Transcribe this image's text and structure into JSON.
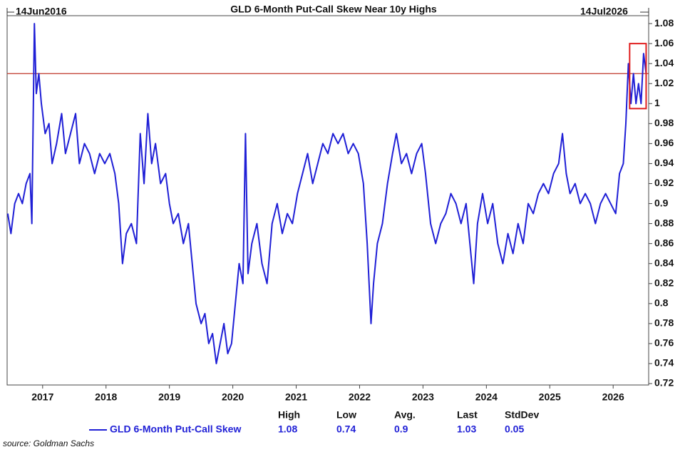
{
  "chart_data": {
    "type": "line",
    "title": "GLD 6-Month Put-Call Skew Near 10y Highs",
    "start_label": "14Jun2016",
    "end_label": "14Jul2026",
    "x": [
      2016.45,
      2016.5,
      2016.56,
      2016.62,
      2016.68,
      2016.74,
      2016.8,
      2016.83,
      2016.87,
      2016.9,
      2016.94,
      2016.98,
      2017.04,
      2017.1,
      2017.15,
      2017.22,
      2017.3,
      2017.36,
      2017.44,
      2017.52,
      2017.58,
      2017.66,
      2017.74,
      2017.82,
      2017.9,
      2017.98,
      2018.06,
      2018.14,
      2018.2,
      2018.26,
      2018.32,
      2018.4,
      2018.48,
      2018.54,
      2018.6,
      2018.66,
      2018.72,
      2018.78,
      2018.86,
      2018.94,
      2019.0,
      2019.06,
      2019.14,
      2019.22,
      2019.3,
      2019.36,
      2019.42,
      2019.5,
      2019.56,
      2019.62,
      2019.68,
      2019.74,
      2019.8,
      2019.86,
      2019.92,
      2019.98,
      2020.04,
      2020.1,
      2020.16,
      2020.2,
      2020.24,
      2020.3,
      2020.38,
      2020.46,
      2020.54,
      2020.62,
      2020.7,
      2020.78,
      2020.86,
      2020.94,
      2021.02,
      2021.1,
      2021.18,
      2021.26,
      2021.34,
      2021.42,
      2021.5,
      2021.58,
      2021.66,
      2021.74,
      2021.82,
      2021.9,
      2021.98,
      2022.06,
      2022.12,
      2022.18,
      2022.22,
      2022.28,
      2022.36,
      2022.44,
      2022.52,
      2022.58,
      2022.66,
      2022.74,
      2022.82,
      2022.9,
      2022.98,
      2023.04,
      2023.12,
      2023.2,
      2023.28,
      2023.36,
      2023.44,
      2023.52,
      2023.6,
      2023.68,
      2023.74,
      2023.8,
      2023.86,
      2023.94,
      2024.02,
      2024.1,
      2024.18,
      2024.26,
      2024.34,
      2024.42,
      2024.5,
      2024.58,
      2024.66,
      2024.74,
      2024.82,
      2024.9,
      2024.98,
      2025.06,
      2025.14,
      2025.2,
      2025.26,
      2025.32,
      2025.4,
      2025.48,
      2025.56,
      2025.64,
      2025.72,
      2025.8,
      2025.88,
      2025.96,
      2026.04,
      2026.1,
      2026.16,
      2026.2,
      2026.24,
      2026.28,
      2026.32,
      2026.36,
      2026.4,
      2026.44,
      2026.48,
      2026.52
    ],
    "series": [
      {
        "name": "GLD 6-Month Put-Call Skew",
        "color": "#1f1fd6",
        "values": [
          0.89,
          0.87,
          0.9,
          0.91,
          0.9,
          0.92,
          0.93,
          0.88,
          1.08,
          1.01,
          1.03,
          1.0,
          0.97,
          0.98,
          0.94,
          0.96,
          0.99,
          0.95,
          0.97,
          0.99,
          0.94,
          0.96,
          0.95,
          0.93,
          0.95,
          0.94,
          0.95,
          0.93,
          0.9,
          0.84,
          0.87,
          0.88,
          0.86,
          0.97,
          0.92,
          0.99,
          0.94,
          0.96,
          0.92,
          0.93,
          0.9,
          0.88,
          0.89,
          0.86,
          0.88,
          0.84,
          0.8,
          0.78,
          0.79,
          0.76,
          0.77,
          0.74,
          0.76,
          0.78,
          0.75,
          0.76,
          0.8,
          0.84,
          0.82,
          0.97,
          0.83,
          0.86,
          0.88,
          0.84,
          0.82,
          0.88,
          0.9,
          0.87,
          0.89,
          0.88,
          0.91,
          0.93,
          0.95,
          0.92,
          0.94,
          0.96,
          0.95,
          0.97,
          0.96,
          0.97,
          0.95,
          0.96,
          0.95,
          0.92,
          0.86,
          0.78,
          0.82,
          0.86,
          0.88,
          0.92,
          0.95,
          0.97,
          0.94,
          0.95,
          0.93,
          0.95,
          0.96,
          0.93,
          0.88,
          0.86,
          0.88,
          0.89,
          0.91,
          0.9,
          0.88,
          0.9,
          0.86,
          0.82,
          0.88,
          0.91,
          0.88,
          0.9,
          0.86,
          0.84,
          0.87,
          0.85,
          0.88,
          0.86,
          0.9,
          0.89,
          0.91,
          0.92,
          0.91,
          0.93,
          0.94,
          0.97,
          0.93,
          0.91,
          0.92,
          0.9,
          0.91,
          0.9,
          0.88,
          0.9,
          0.91,
          0.9,
          0.89,
          0.93,
          0.94,
          0.98,
          1.04,
          1.0,
          1.03,
          1.0,
          1.02,
          1.0,
          1.05,
          1.03
        ]
      }
    ],
    "xlim": [
      2016.44,
      2026.56
    ],
    "xticks": [
      2017,
      2018,
      2019,
      2020,
      2021,
      2022,
      2023,
      2024,
      2025,
      2026
    ],
    "ylim": [
      0.7186,
      1.0879
    ],
    "yticks": [
      1.08,
      1.06,
      1.04,
      1.02,
      1,
      0.98,
      0.96,
      0.94,
      0.92,
      0.9,
      0.88,
      0.86,
      0.84,
      0.82,
      0.8,
      0.78,
      0.76,
      0.74,
      0.72
    ],
    "reference_line": {
      "value": 1.03,
      "color": "#c0392b"
    },
    "highlight": {
      "xlim": [
        2026.26,
        2026.52
      ],
      "ylim": [
        0.995,
        1.06
      ],
      "color": "#e02020"
    },
    "stats": {
      "headers": [
        "High",
        "Low",
        "Avg.",
        "Last",
        "StdDev"
      ],
      "values": [
        1.08,
        0.74,
        0.9,
        1.03,
        0.05
      ]
    },
    "source": "source: Goldman Sachs"
  }
}
